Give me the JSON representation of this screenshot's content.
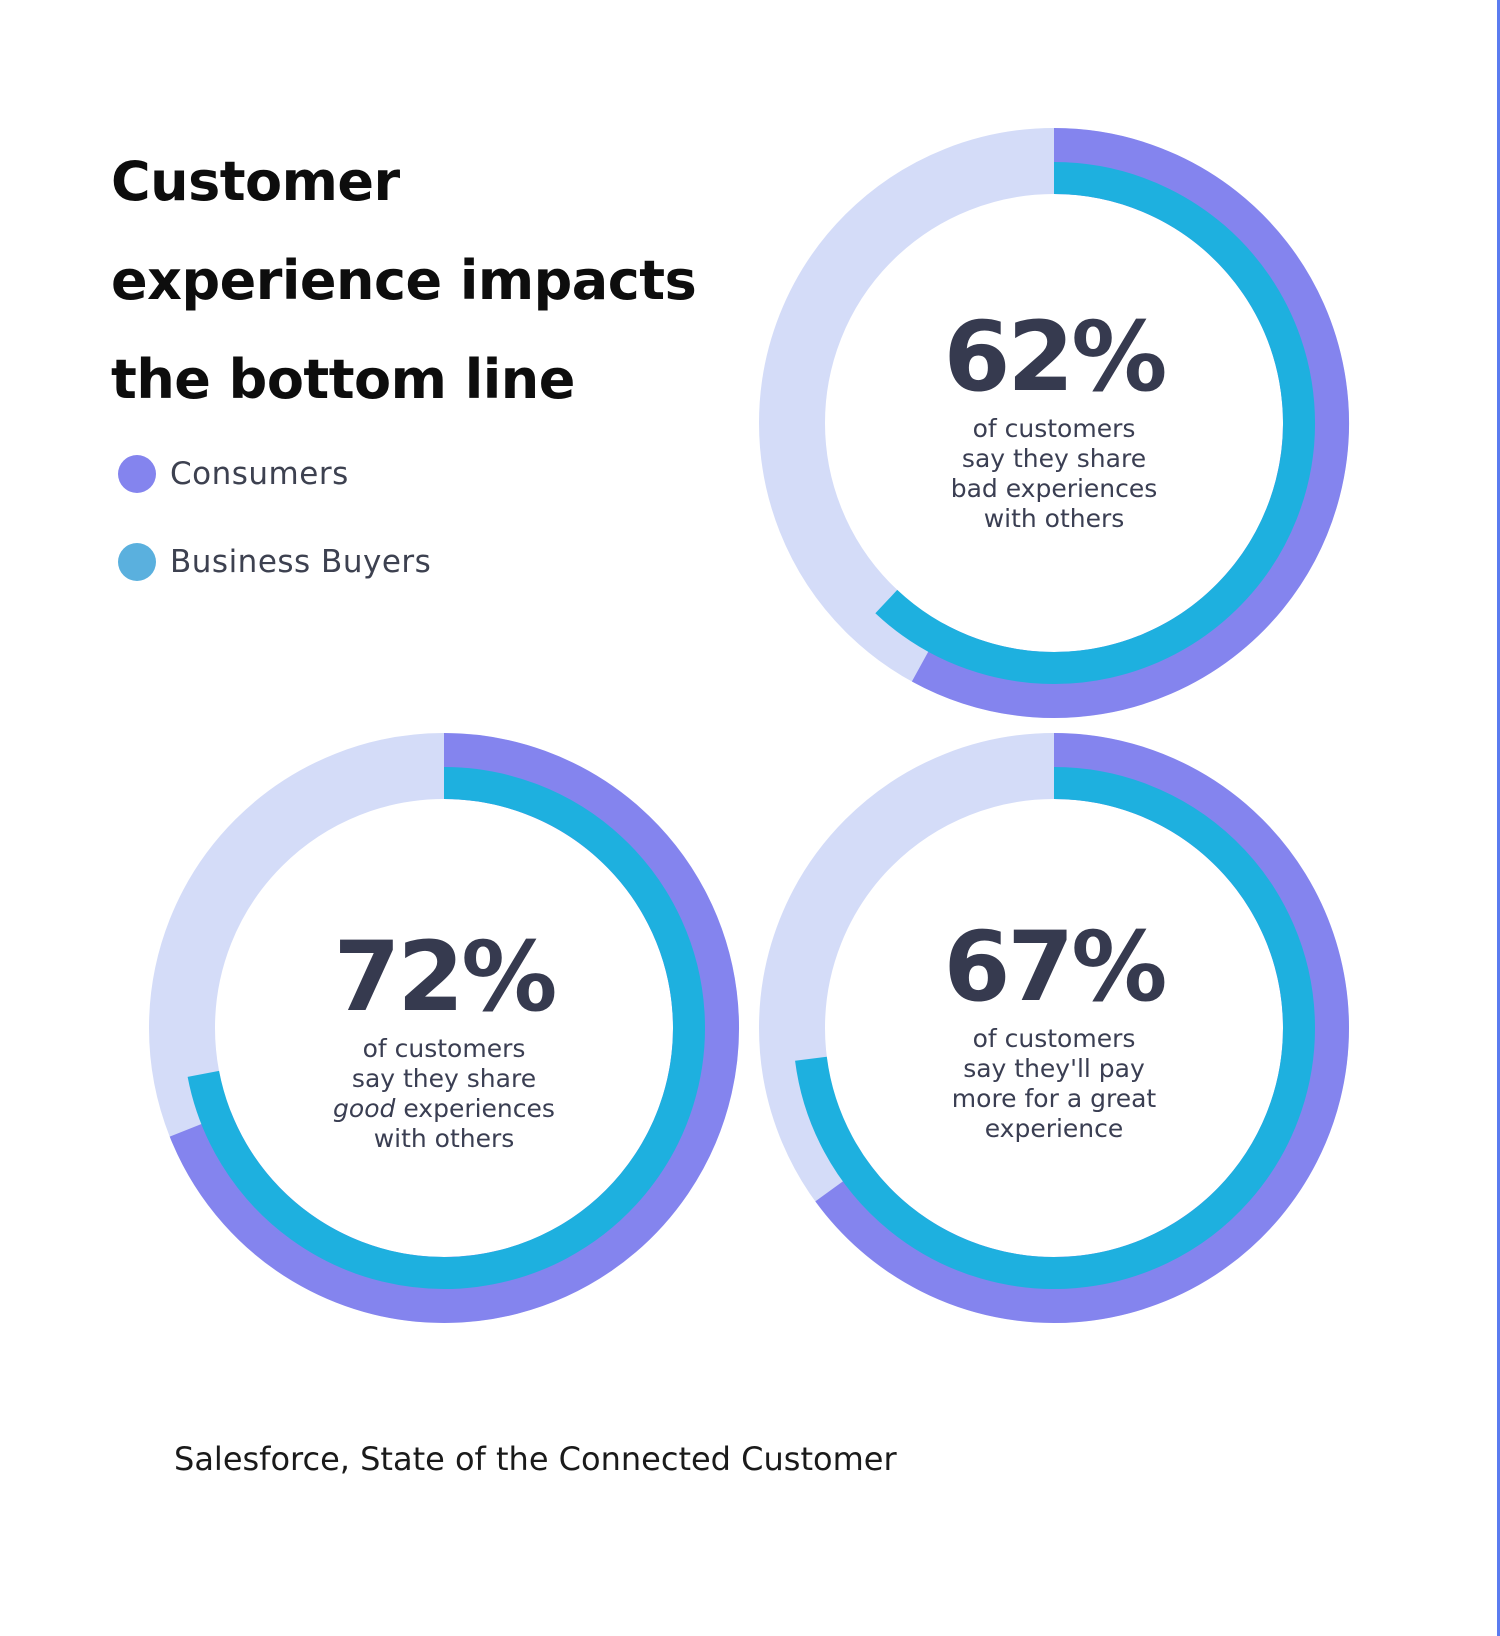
{
  "header": {
    "title_lines": [
      "Customer",
      "experience impacts",
      "the bottom line"
    ]
  },
  "legend": {
    "items": [
      {
        "label": "Consumers",
        "color": "#8484ee"
      },
      {
        "label": "Business Buyers",
        "color": "#5ab0de"
      }
    ]
  },
  "colors": {
    "consumers_ring": "#8484ee",
    "business_buyers_ring": "#1eb0df",
    "track": "#d4dcf8",
    "value_text": "#363a4f"
  },
  "chart_data": [
    {
      "type": "pie",
      "value_label": "62%",
      "caption_lines": [
        "of customers",
        "say they share",
        "bad experiences",
        "with others"
      ],
      "series": [
        {
          "name": "Consumers",
          "values": [
            58
          ]
        },
        {
          "name": "Business Buyers",
          "values": [
            62
          ]
        }
      ]
    },
    {
      "type": "pie",
      "value_label": "72%",
      "caption_lines": [
        "of customers",
        "say they share",
        "good experiences",
        "with others"
      ],
      "caption_italic_word": "good",
      "series": [
        {
          "name": "Consumers",
          "values": [
            69
          ]
        },
        {
          "name": "Business Buyers",
          "values": [
            72
          ]
        }
      ]
    },
    {
      "type": "pie",
      "value_label": "67%",
      "caption_lines": [
        "of customers",
        "say they'll pay",
        "more for a great",
        "experience"
      ],
      "series": [
        {
          "name": "Consumers",
          "values": [
            65
          ]
        },
        {
          "name": "Business Buyers",
          "values": [
            73
          ]
        }
      ]
    }
  ],
  "source": "Salesforce, State of the Connected Customer"
}
